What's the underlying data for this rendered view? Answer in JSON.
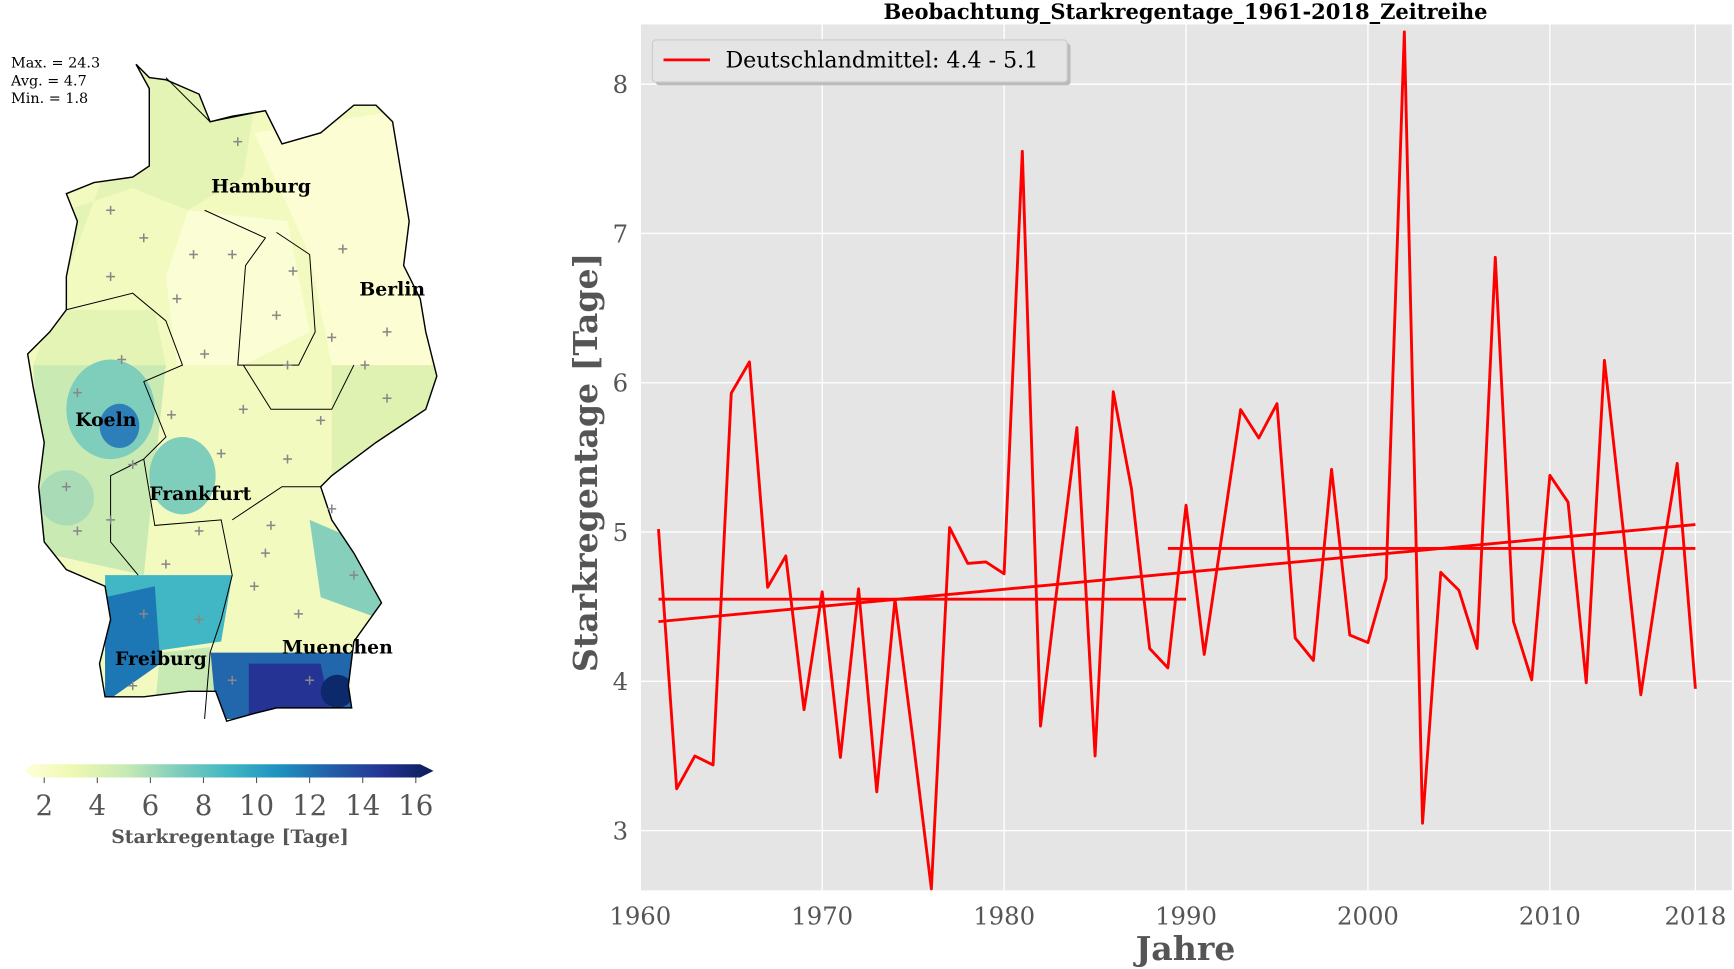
{
  "map": {
    "stats": [
      "Max. = 24.3",
      "Avg. = 4.7",
      "Min. = 1.8"
    ],
    "cities": [
      {
        "name": "Hamburg"
      },
      {
        "name": "Berlin"
      },
      {
        "name": "Koeln"
      },
      {
        "name": "Frankfurt"
      },
      {
        "name": "Freiburg"
      },
      {
        "name": "Muenchen"
      }
    ],
    "colorbar": {
      "label": "Starkregentage [Tage]",
      "ticks": [
        "2",
        "4",
        "6",
        "8",
        "10",
        "12",
        "14",
        "16"
      ],
      "range": [
        2,
        16
      ],
      "colors": [
        "#ffffd9",
        "#edf8b1",
        "#c7e9b4",
        "#7fcdbb",
        "#41b6c4",
        "#1d91c0",
        "#225ea8",
        "#253494",
        "#081d58"
      ]
    }
  },
  "chart_data": {
    "type": "line",
    "title": "Beobachtung_Starkregentage_1961-2018_Zeitreihe",
    "xlabel": "Jahre",
    "ylabel": "Starkregentage [Tage]",
    "xlim": [
      1960,
      2020
    ],
    "ylim": [
      2.6,
      8.4
    ],
    "xticks": [
      "1960",
      "1970",
      "1980",
      "1990",
      "2000",
      "2010",
      "2018"
    ],
    "yticks": [
      "3",
      "4",
      "5",
      "6",
      "7",
      "8"
    ],
    "grid": true,
    "legend": {
      "label": "Deutschlandmittel: 4.4 - 5.1",
      "placement": "top-left"
    },
    "color": "#ff0000",
    "series": [
      {
        "name": "Deutschlandmittel",
        "x": [
          1961,
          1962,
          1963,
          1964,
          1965,
          1966,
          1967,
          1968,
          1969,
          1970,
          1971,
          1972,
          1973,
          1974,
          1975,
          1976,
          1977,
          1978,
          1979,
          1980,
          1981,
          1982,
          1983,
          1984,
          1985,
          1986,
          1987,
          1988,
          1989,
          1990,
          1991,
          1992,
          1993,
          1994,
          1995,
          1996,
          1997,
          1998,
          1999,
          2000,
          2001,
          2002,
          2003,
          2004,
          2005,
          2006,
          2007,
          2008,
          2009,
          2010,
          2011,
          2012,
          2013,
          2014,
          2015,
          2016,
          2017,
          2018
        ],
        "values": [
          5.02,
          3.28,
          3.5,
          3.44,
          5.93,
          6.14,
          4.63,
          4.84,
          3.81,
          4.6,
          3.49,
          4.62,
          3.26,
          4.55,
          3.6,
          2.61,
          5.03,
          4.79,
          4.8,
          4.72,
          7.55,
          3.7,
          4.72,
          5.7,
          3.5,
          5.94,
          5.29,
          4.22,
          4.09,
          5.18,
          4.18,
          5.0,
          5.82,
          5.63,
          5.86,
          4.29,
          4.14,
          5.42,
          4.31,
          4.26,
          4.69,
          8.35,
          3.05,
          4.73,
          4.61,
          4.22,
          6.84,
          4.4,
          4.01,
          5.38,
          5.2,
          3.99,
          6.15,
          5.05,
          3.91,
          4.72,
          5.46,
          3.95
        ]
      }
    ],
    "reference_lines": [
      {
        "name": "mean-1961-1990",
        "x": [
          1961,
          1990
        ],
        "y": [
          4.55,
          4.55
        ]
      },
      {
        "name": "mean-1989-2018",
        "x": [
          1989,
          2018
        ],
        "y": [
          4.89,
          4.89
        ]
      },
      {
        "name": "linear-trend",
        "x": [
          1961,
          2018
        ],
        "y": [
          4.4,
          5.05
        ]
      }
    ]
  }
}
